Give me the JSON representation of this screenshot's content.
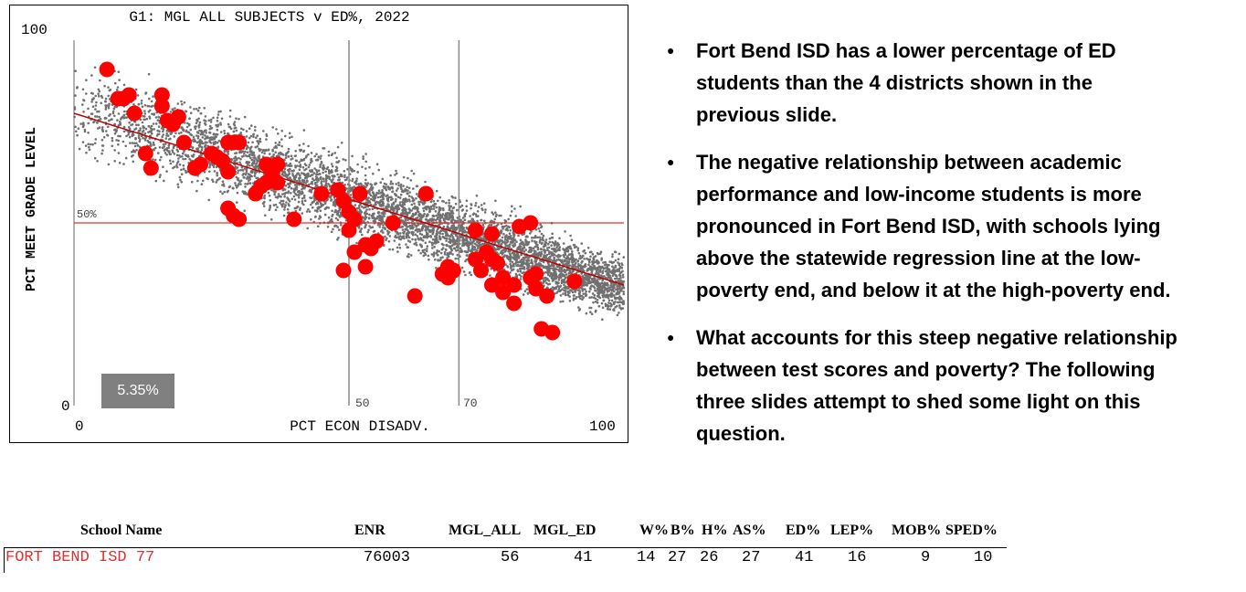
{
  "chart_data": {
    "type": "scatter",
    "title": "G1: MGL ALL SUBJECTS v ED%, 2022",
    "xlabel": "PCT ECON DISADV.",
    "ylabel": "PCT MEET GRADE LEVEL",
    "xlim": [
      0,
      100
    ],
    "ylim": [
      0,
      100
    ],
    "x_tick_labels": [
      "0",
      "100"
    ],
    "y_tick_labels": [
      "100",
      "0"
    ],
    "reference_lines": {
      "horizontal": {
        "y": 50,
        "label": "50%",
        "color": "#e03030"
      },
      "vertical": [
        {
          "x": 50,
          "label": "50"
        },
        {
          "x": 70,
          "label": "70"
        }
      ]
    },
    "regression_line": {
      "x": [
        0,
        100
      ],
      "y": [
        80,
        33
      ],
      "color": "#c00000"
    },
    "background_series": {
      "name": "",
      "color": "#707070",
      "count": 5500,
      "description": ""
    },
    "highlight_series": {
      "name": "",
      "color": "#ff0000",
      "points": [
        [
          6,
          92
        ],
        [
          8,
          84
        ],
        [
          9,
          84
        ],
        [
          10,
          85
        ],
        [
          11,
          80
        ],
        [
          13,
          69
        ],
        [
          14,
          65
        ],
        [
          16,
          85
        ],
        [
          16,
          82
        ],
        [
          17,
          78
        ],
        [
          18,
          77
        ],
        [
          19,
          79
        ],
        [
          20,
          72
        ],
        [
          22,
          65
        ],
        [
          23,
          66
        ],
        [
          25,
          69
        ],
        [
          26,
          68
        ],
        [
          27,
          67
        ],
        [
          28,
          64
        ],
        [
          28,
          72
        ],
        [
          29,
          72
        ],
        [
          30,
          72
        ],
        [
          28,
          54
        ],
        [
          29,
          52
        ],
        [
          30,
          51
        ],
        [
          33,
          58
        ],
        [
          34,
          60
        ],
        [
          35,
          61
        ],
        [
          35,
          66
        ],
        [
          36,
          64
        ],
        [
          37,
          66
        ],
        [
          37,
          61
        ],
        [
          40,
          51
        ],
        [
          45,
          58
        ],
        [
          48,
          59
        ],
        [
          49,
          56
        ],
        [
          50,
          53
        ],
        [
          51,
          51
        ],
        [
          52,
          58
        ],
        [
          50,
          48
        ],
        [
          51,
          42
        ],
        [
          53,
          44
        ],
        [
          54,
          43
        ],
        [
          55,
          45
        ],
        [
          53,
          38
        ],
        [
          49,
          37
        ],
        [
          58,
          50
        ],
        [
          64,
          58
        ],
        [
          62,
          30
        ],
        [
          67,
          36
        ],
        [
          68,
          35
        ],
        [
          68,
          38
        ],
        [
          69,
          37
        ],
        [
          73,
          40
        ],
        [
          74,
          37
        ],
        [
          75,
          42
        ],
        [
          76,
          40
        ],
        [
          77,
          39
        ],
        [
          76,
          33
        ],
        [
          78,
          35
        ],
        [
          78,
          31
        ],
        [
          80,
          33
        ],
        [
          80,
          28
        ],
        [
          81,
          49
        ],
        [
          83,
          50
        ],
        [
          83,
          35
        ],
        [
          84,
          32
        ],
        [
          84,
          36
        ],
        [
          86,
          30
        ],
        [
          85,
          21
        ],
        [
          87,
          20
        ],
        [
          91,
          34
        ],
        [
          76,
          47
        ],
        [
          73,
          48
        ]
      ]
    },
    "annotation_box": {
      "text": "5.35%"
    }
  },
  "bullets": [
    "Fort Bend ISD has a lower percentage of ED students than the 4 districts shown in the previous slide.",
    "The negative relationship between academic performance and low-income students is more pronounced in Fort Bend ISD, with schools lying above the statewide regression line at the low-poverty end, and below it at the high-poverty end.",
    "What accounts for this steep negative relationship between test scores and poverty? The following three slides attempt to shed some light on this question."
  ],
  "table": {
    "headers": [
      "School Name",
      "ENR",
      "MGL_ALL",
      "MGL_ED",
      "W%",
      "B%",
      "H%",
      "AS%",
      "ED%",
      "LEP%",
      "MOB%",
      "SPED%"
    ],
    "row": {
      "name": "FORT BEND ISD 77",
      "name_color": "#e03030",
      "values": [
        "76003",
        "56",
        "41",
        "14",
        "27",
        "26",
        "27",
        "41",
        "16",
        "9",
        "10"
      ]
    }
  }
}
